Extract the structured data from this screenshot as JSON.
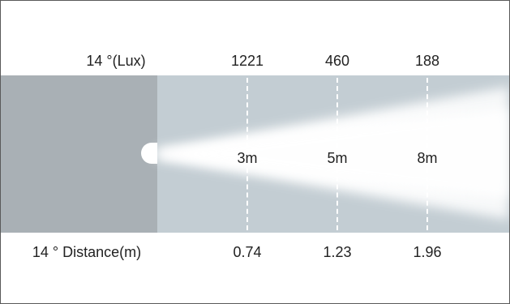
{
  "top_row": {
    "title": "14 °(Lux)",
    "values": [
      "1221",
      "460",
      "188"
    ]
  },
  "bottom_row": {
    "title": "14 ° Distance(m)",
    "values": [
      "0.74",
      "1.23",
      "1.96"
    ]
  },
  "distances": [
    "3m",
    "5m",
    "8m"
  ],
  "colors": {
    "band": "#c3cdd3",
    "fixture_area": "#a9b0b5",
    "beam": "#ffffff",
    "dash": "#ffffff"
  },
  "icons": [
    "light-source-icon"
  ]
}
